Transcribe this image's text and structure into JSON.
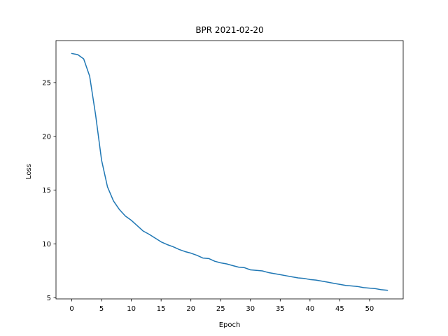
{
  "chart_data": {
    "type": "line",
    "title": "BPR 2021-02-20",
    "xlabel": "Epoch",
    "ylabel": "Loss",
    "xlim": [
      -2.65,
      55.65
    ],
    "ylim": [
      4.9,
      28.9
    ],
    "xticks": [
      0,
      5,
      10,
      15,
      20,
      25,
      30,
      35,
      40,
      45,
      50
    ],
    "yticks": [
      5,
      10,
      15,
      20,
      25
    ],
    "grid": false,
    "colors": {
      "line": "#1f77b4",
      "axes": "#000000",
      "background": "#ffffff"
    },
    "series": [
      {
        "x": [
          0,
          1,
          2,
          3,
          4,
          5,
          6,
          7,
          8,
          9,
          10,
          11,
          12,
          13,
          14,
          15,
          16,
          17,
          18,
          19,
          20,
          21,
          22,
          23,
          24,
          25,
          26,
          27,
          28,
          29,
          30,
          31,
          32,
          33,
          34,
          35,
          36,
          37,
          38,
          39,
          40,
          41,
          42,
          43,
          44,
          45,
          46,
          47,
          48,
          49,
          50,
          51,
          52,
          53
        ],
        "values": [
          27.7,
          27.6,
          27.2,
          25.6,
          22.0,
          17.8,
          15.3,
          14.0,
          13.2,
          12.6,
          12.2,
          11.7,
          11.2,
          10.9,
          10.55,
          10.2,
          9.95,
          9.75,
          9.5,
          9.3,
          9.15,
          8.95,
          8.7,
          8.65,
          8.4,
          8.25,
          8.15,
          8.0,
          7.85,
          7.8,
          7.6,
          7.55,
          7.5,
          7.35,
          7.25,
          7.15,
          7.05,
          6.95,
          6.85,
          6.8,
          6.7,
          6.65,
          6.55,
          6.45,
          6.35,
          6.25,
          6.15,
          6.1,
          6.05,
          5.95,
          5.9,
          5.85,
          5.75,
          5.7
        ]
      }
    ]
  }
}
